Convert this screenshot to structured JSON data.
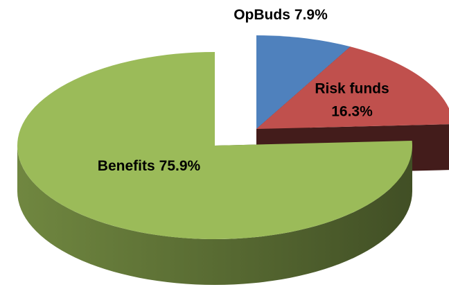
{
  "chart_data": {
    "type": "pie",
    "categories": [
      "OpBuds",
      "Risk funds",
      "Benefits"
    ],
    "values": [
      7.9,
      16.3,
      75.9
    ],
    "value_labels": [
      "7.9%",
      "16.3%",
      "75.9%"
    ],
    "colors": [
      "#4f81bd",
      "#c0504d",
      "#9bbb59"
    ]
  }
}
